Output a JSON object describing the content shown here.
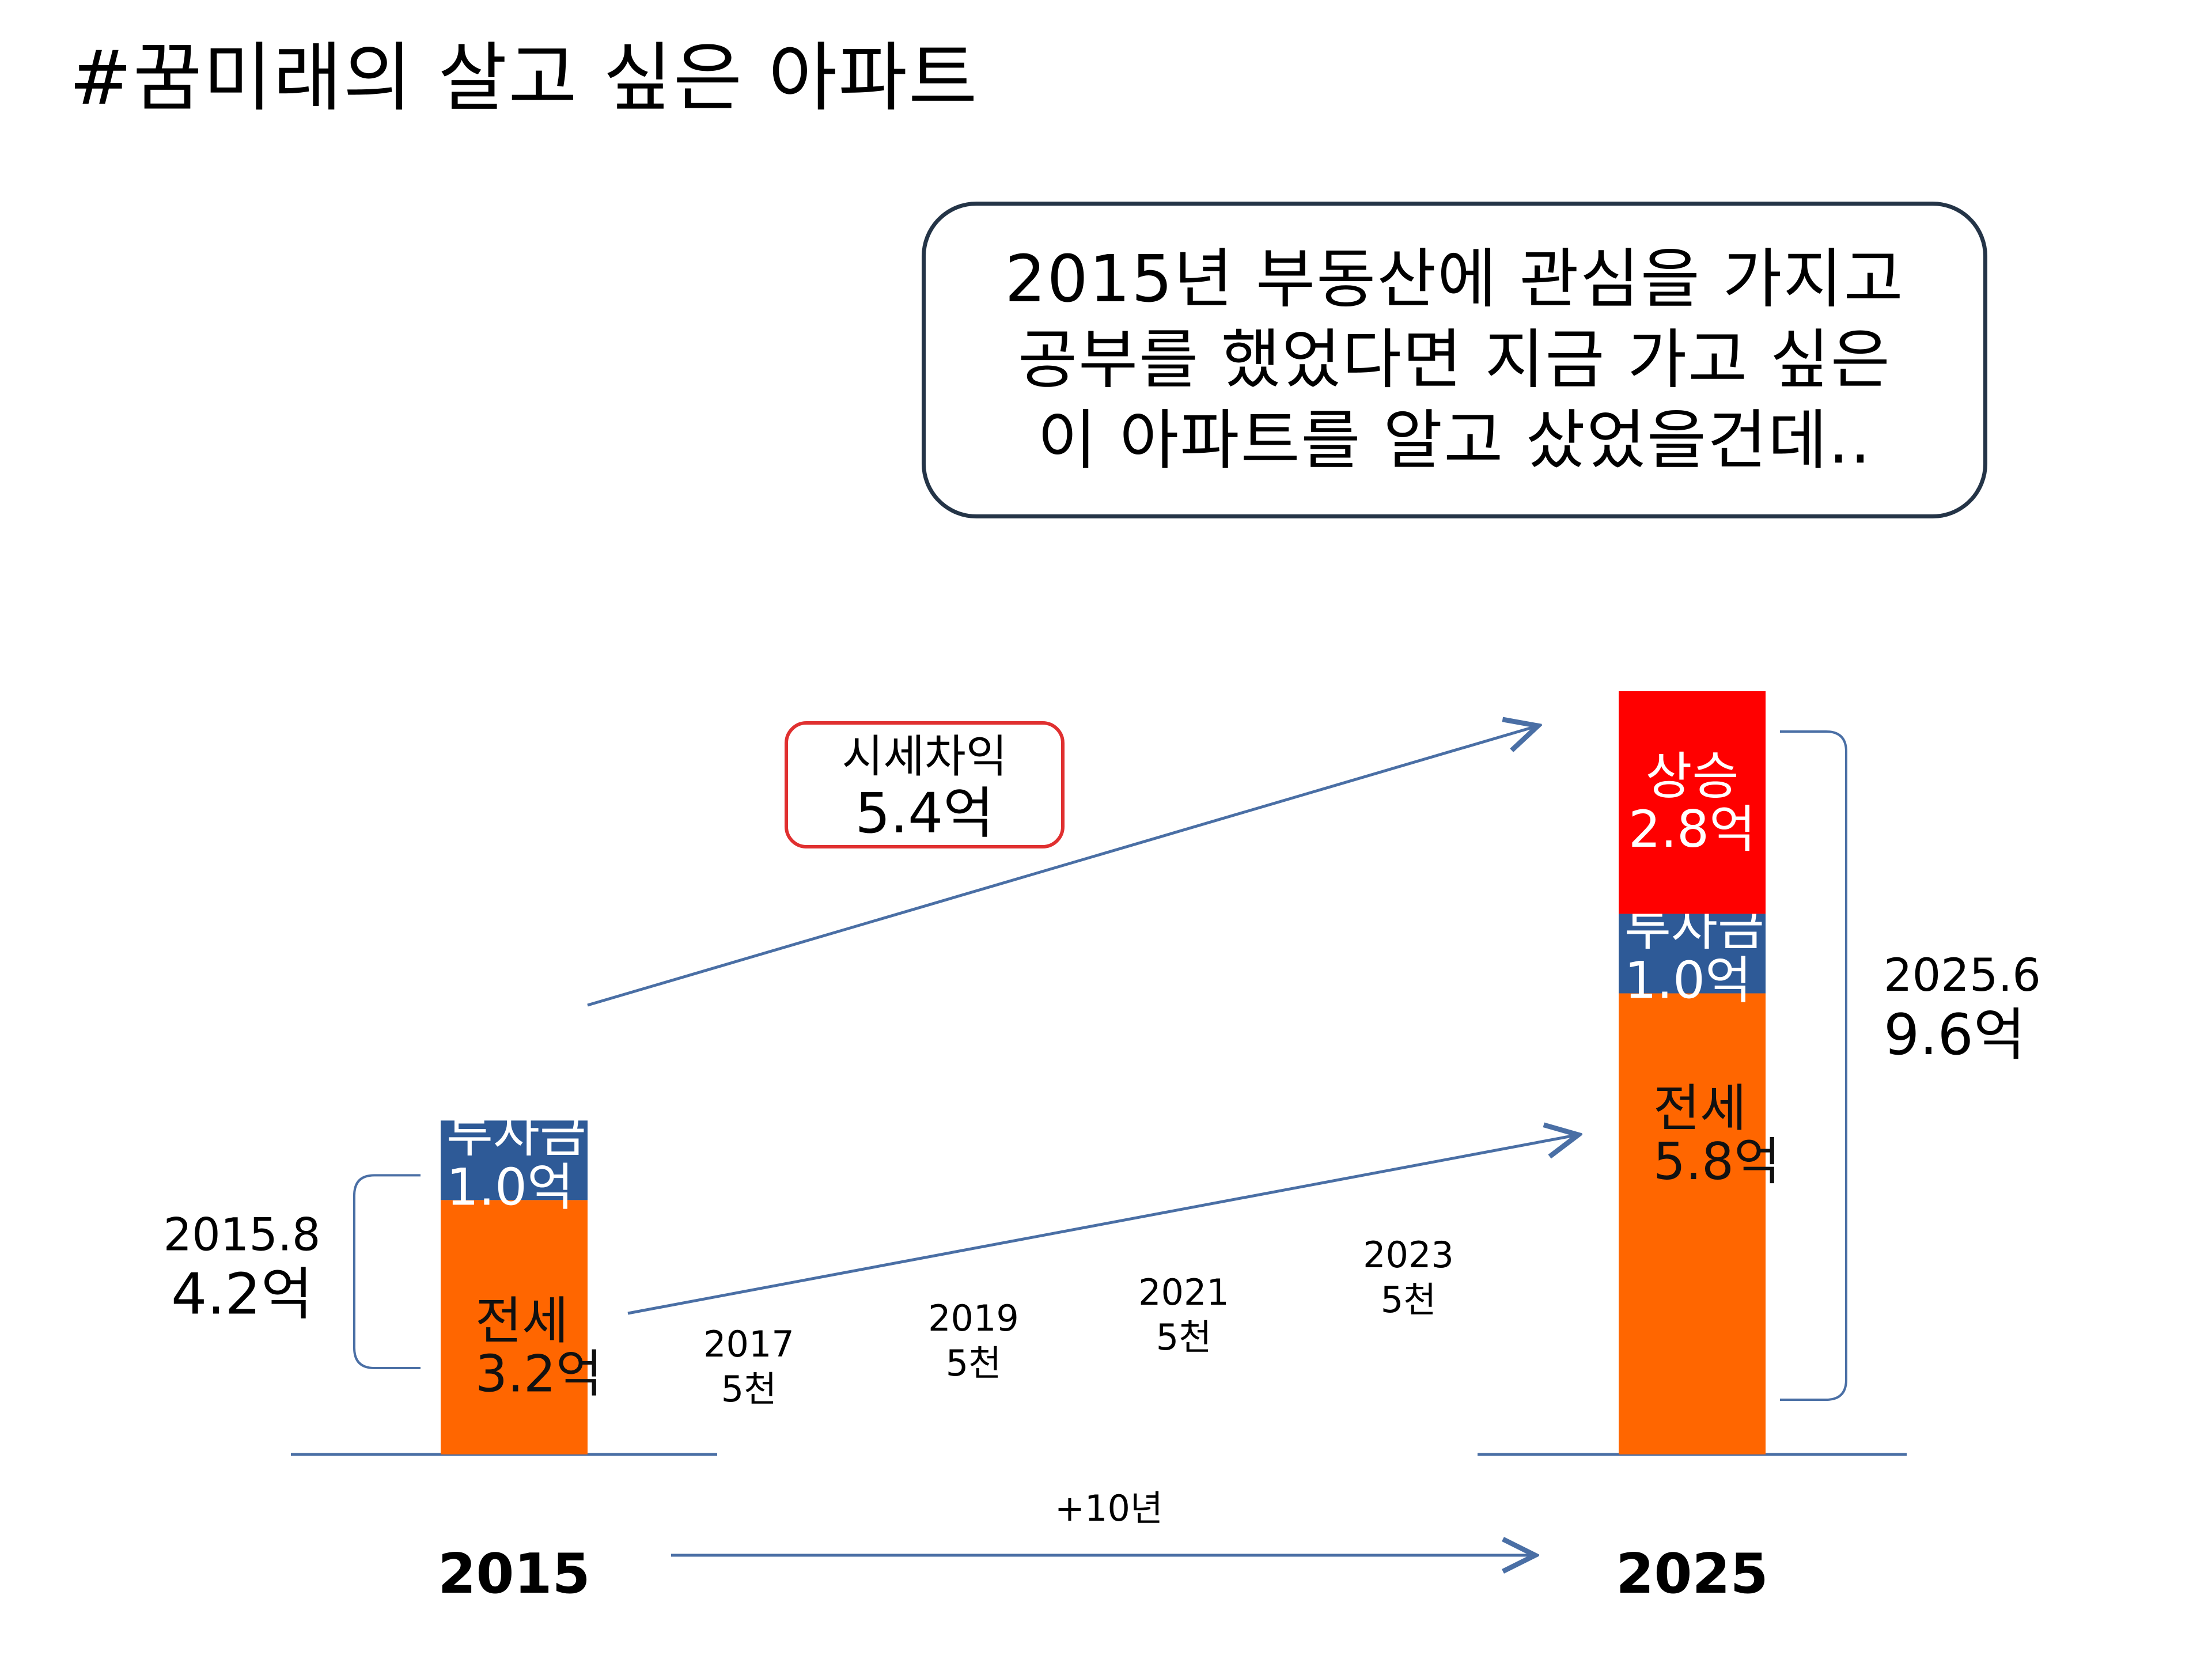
{
  "page": {
    "title": "#꿈미래의 살고 싶은 아파트",
    "callout": {
      "lines": [
        "2015년 부동산에 관심을 가지고",
        "공부를 했었다면 지금 가고 싶은",
        "이 아파트를 알고 샀었을건데.."
      ]
    }
  },
  "chart_data": {
    "type": "bar",
    "stacked": true,
    "categories": [
      "2015",
      "2025"
    ],
    "series": [
      {
        "name": "전세",
        "color": "#FF6600",
        "values": [
          3.2,
          5.8
        ],
        "labels": [
          "전세\n3.2억",
          "전세\n5.8억"
        ]
      },
      {
        "name": "투자금",
        "color": "#2E5A97",
        "values": [
          1.0,
          1.0
        ],
        "labels": [
          "투자금\n1.0억",
          "투자금\n1.0억"
        ]
      },
      {
        "name": "상승",
        "color": "#FF0000",
        "values": [
          0,
          2.8
        ],
        "labels": [
          "",
          "상승\n2.8억"
        ]
      }
    ],
    "totals": [
      {
        "date": "2015.8",
        "value": "4.2억"
      },
      {
        "date": "2025.6",
        "value": "9.6억"
      }
    ],
    "price_diff": {
      "label": "시세차익",
      "value": "5.4억"
    },
    "yearly_increase": [
      {
        "year": "2017",
        "amount": "5천"
      },
      {
        "year": "2019",
        "amount": "5천"
      },
      {
        "year": "2021",
        "amount": "5천"
      },
      {
        "year": "2023",
        "amount": "5천"
      }
    ],
    "period_label": "+10년",
    "ylim": [
      0,
      9.6
    ],
    "colors": {
      "axis": "#4A6FA5",
      "diff_border": "#E03030"
    }
  }
}
